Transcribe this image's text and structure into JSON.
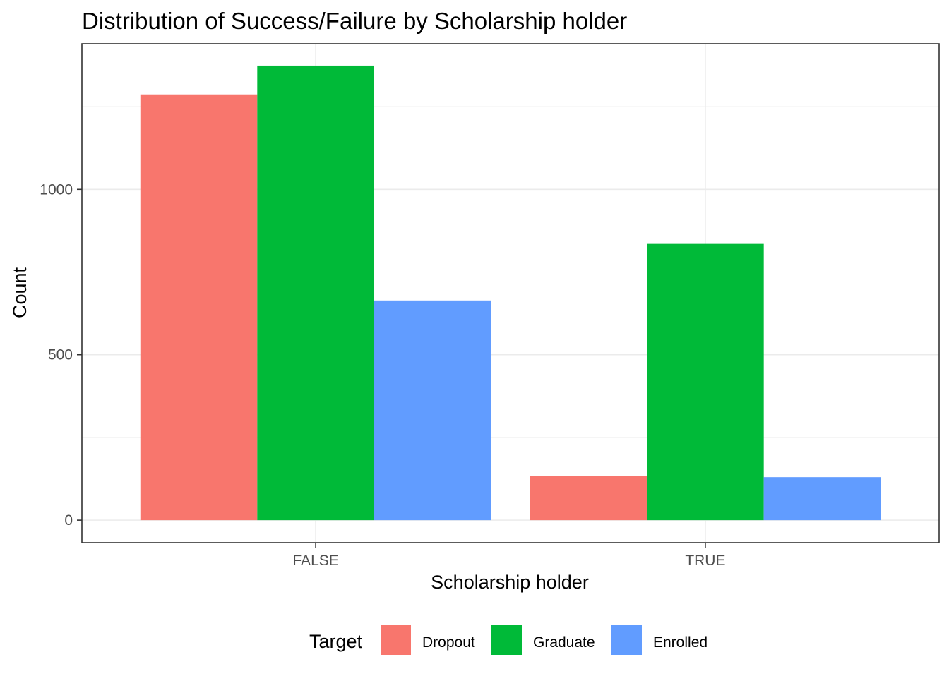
{
  "chart_data": {
    "type": "bar",
    "title": "Distribution of Success/Failure by Scholarship holder",
    "xlabel": "Scholarship holder",
    "ylabel": "Count",
    "categories": [
      "FALSE",
      "TRUE"
    ],
    "series": [
      {
        "name": "Dropout",
        "color": "#F8766D",
        "values": [
          1287,
          134
        ]
      },
      {
        "name": "Graduate",
        "color": "#00BA38",
        "values": [
          1374,
          835
        ]
      },
      {
        "name": "Enrolled",
        "color": "#619CFF",
        "values": [
          664,
          130
        ]
      }
    ],
    "ylim": [
      -68,
      1440
    ],
    "yticks": [
      0,
      500,
      1000
    ],
    "grid": true,
    "legend": {
      "title": "Target",
      "position": "bottom"
    }
  }
}
